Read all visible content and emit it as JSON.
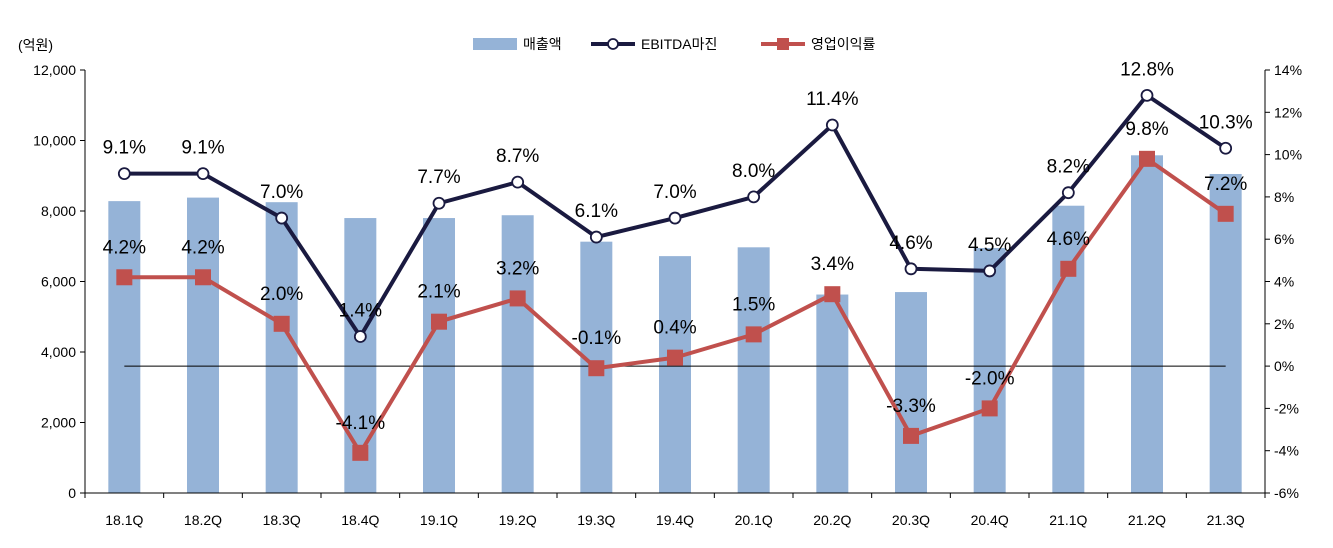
{
  "chart_data": {
    "type": "bar+line",
    "categories": [
      "18.1Q",
      "18.2Q",
      "18.3Q",
      "18.4Q",
      "19.1Q",
      "19.2Q",
      "19.3Q",
      "19.4Q",
      "20.1Q",
      "20.2Q",
      "20.3Q",
      "20.4Q",
      "21.1Q",
      "21.2Q",
      "21.3Q"
    ],
    "left_axis_unit": "(억원)",
    "left_axis": {
      "min": 0,
      "max": 12000,
      "ticks": [
        "0",
        "2,000",
        "4,000",
        "6,000",
        "8,000",
        "10,000",
        "12,000"
      ],
      "tick_values": [
        0,
        2000,
        4000,
        6000,
        8000,
        10000,
        12000
      ]
    },
    "right_axis": {
      "min": -6,
      "max": 14,
      "ticks": [
        "-6%",
        "-4%",
        "-2%",
        "0%",
        "2%",
        "4%",
        "6%",
        "8%",
        "10%",
        "12%",
        "14%"
      ],
      "tick_values": [
        -6,
        -4,
        -2,
        0,
        2,
        4,
        6,
        8,
        10,
        12,
        14
      ]
    },
    "series": [
      {
        "name": "매출액",
        "kind": "bar",
        "axis": "left",
        "color": "#95b3d7",
        "values": [
          8280,
          8380,
          8250,
          7800,
          7800,
          7880,
          7130,
          6720,
          6970,
          5630,
          5700,
          6950,
          8150,
          9580,
          9050
        ]
      },
      {
        "name": "EBITDA마진",
        "kind": "line",
        "axis": "right",
        "color": "#1a1a40",
        "marker": "circle",
        "values": [
          9.1,
          9.1,
          7.0,
          1.4,
          7.7,
          8.7,
          6.1,
          7.0,
          8.0,
          11.4,
          4.6,
          4.5,
          8.2,
          12.8,
          10.3
        ],
        "labels": [
          "9.1%",
          "9.1%",
          "7.0%",
          "1.4%",
          "7.7%",
          "8.7%",
          "6.1%",
          "7.0%",
          "8.0%",
          "11.4%",
          "4.6%",
          "4.5%",
          "8.2%",
          "12.8%",
          "10.3%"
        ]
      },
      {
        "name": "영업이익률",
        "kind": "line",
        "axis": "right",
        "color": "#c0504d",
        "marker": "square",
        "values": [
          4.2,
          4.2,
          2.0,
          -4.1,
          2.1,
          3.2,
          -0.1,
          0.4,
          1.5,
          3.4,
          -3.3,
          -2.0,
          4.6,
          9.8,
          7.2
        ],
        "labels": [
          "4.2%",
          "4.2%",
          "2.0%",
          "-4.1%",
          "2.1%",
          "3.2%",
          "-0.1%",
          "0.4%",
          "1.5%",
          "3.4%",
          "-3.3%",
          "-2.0%",
          "4.6%",
          "9.8%",
          "7.2%"
        ]
      }
    ]
  }
}
